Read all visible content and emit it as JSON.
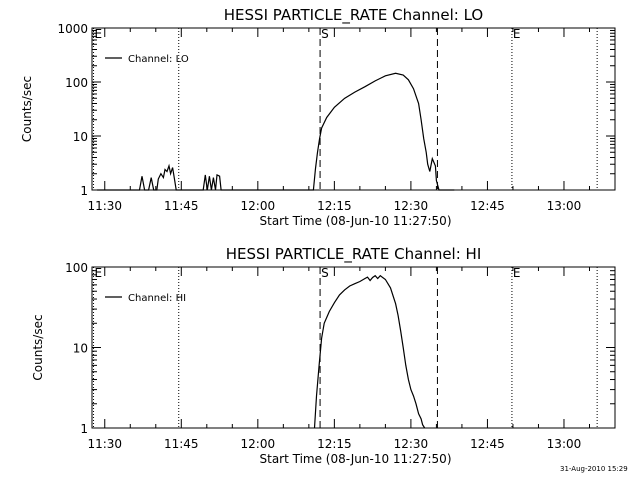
{
  "timestamp": "31-Aug-2010 15:29",
  "chart_data": [
    {
      "type": "line",
      "title": "HESSI PARTICLE_RATE Channel: LO",
      "xlabel": "Start Time (08-Jun-10 11:27:50)",
      "ylabel": "Counts/sec",
      "y_scale": "log",
      "ylim": [
        1,
        1000
      ],
      "y_ticks": [
        1,
        10,
        100,
        1000
      ],
      "y_tick_labels": [
        "1",
        "10",
        "100",
        "1000"
      ],
      "x_range_min": [
        -2.5,
        100
      ],
      "x_ticks_min": [
        0,
        15,
        30,
        45,
        60,
        75,
        90
      ],
      "x_tick_labels": [
        "11:30",
        "11:45",
        "12:00",
        "12:15",
        "12:30",
        "12:45",
        "13:00"
      ],
      "legend": "Channel: LO",
      "legend_position": "top-left",
      "markers": [
        {
          "label": "E",
          "x_min": -2.2,
          "style": "dotted"
        },
        {
          "label": "",
          "x_min": 14.5,
          "style": "dotted"
        },
        {
          "label": "S",
          "x_min": 42.2,
          "style": "dashed"
        },
        {
          "label": "",
          "x_min": 65.2,
          "style": "dashed"
        },
        {
          "label": "E",
          "x_min": 79.8,
          "style": "dotted"
        },
        {
          "label": "",
          "x_min": 96.5,
          "style": "dotted"
        }
      ],
      "series": [
        {
          "x_min": [
            -1.5,
            6.8,
            7.3,
            7.8,
            8.6,
            9.1,
            9.6,
            10.2,
            10.5,
            11.0,
            11.5,
            11.8,
            12.2,
            12.6,
            12.9,
            13.3,
            13.7,
            14.0,
            14.3,
            14.7,
            15.2,
            16.0,
            17.0,
            18.0,
            19.3,
            19.7,
            20.1,
            20.5,
            20.9,
            21.3,
            21.7,
            22.0,
            22.5,
            22.8,
            23.5,
            24.5,
            40.9,
            41.3,
            41.7,
            42.1,
            42.5,
            43.5,
            45.0,
            47.0,
            49.0,
            51.0,
            53.0,
            55.0,
            57.0,
            58.5,
            59.5,
            60.5,
            61.5,
            62.0,
            62.5,
            63.0,
            63.3,
            63.7,
            64.2,
            64.8,
            65.0,
            65.5,
            68.5
          ],
          "y": [
            1,
            1,
            1.8,
            1,
            1,
            1.7,
            1,
            1,
            1.6,
            2,
            1.7,
            2.4,
            2.2,
            2.8,
            2,
            2.6,
            1.5,
            1,
            1,
            1,
            1,
            1,
            1,
            1,
            1,
            1.9,
            1,
            1.8,
            1,
            1.7,
            1,
            1.9,
            1.8,
            1,
            1,
            1,
            1,
            2.5,
            5,
            9,
            14,
            22,
            34,
            50,
            65,
            82,
            105,
            130,
            145,
            135,
            110,
            75,
            40,
            20,
            9,
            5,
            3,
            2.2,
            3.8,
            2.8,
            1.5,
            1,
            1
          ]
        }
      ]
    },
    {
      "type": "line",
      "title": "HESSI PARTICLE_RATE Channel: HI",
      "xlabel": "Start Time (08-Jun-10 11:27:50)",
      "ylabel": "Counts/sec",
      "y_scale": "log",
      "ylim": [
        1,
        100
      ],
      "y_ticks": [
        1,
        10,
        100
      ],
      "y_tick_labels": [
        "1",
        "10",
        "100"
      ],
      "x_range_min": [
        -2.5,
        100
      ],
      "x_ticks_min": [
        0,
        15,
        30,
        45,
        60,
        75,
        90
      ],
      "x_tick_labels": [
        "11:30",
        "11:45",
        "12:00",
        "12:15",
        "12:30",
        "12:45",
        "13:00"
      ],
      "legend": "Channel: HI",
      "legend_position": "top-left",
      "markers": [
        {
          "label": "E",
          "x_min": -2.2,
          "style": "dotted"
        },
        {
          "label": "",
          "x_min": 14.5,
          "style": "dotted"
        },
        {
          "label": "S",
          "x_min": 42.2,
          "style": "dashed"
        },
        {
          "label": "",
          "x_min": 65.2,
          "style": "dashed"
        },
        {
          "label": "E",
          "x_min": 79.8,
          "style": "dotted"
        },
        {
          "label": "",
          "x_min": 96.5,
          "style": "dotted"
        }
      ],
      "series": [
        {
          "x_min": [
            41.1,
            41.5,
            42.0,
            42.5,
            43.0,
            44.0,
            45.0,
            46.0,
            47.0,
            48.0,
            49.0,
            50.0,
            51.0,
            51.5,
            52.0,
            52.5,
            53.0,
            53.5,
            54.0,
            55.0,
            56.0,
            57.0,
            57.5,
            58.0,
            58.5,
            59.0,
            59.5,
            60.0,
            60.5,
            61.0,
            61.5,
            62.0,
            62.3,
            62.7
          ],
          "y": [
            1,
            2.5,
            6,
            13,
            20,
            28,
            36,
            45,
            52,
            58,
            62,
            66,
            72,
            75,
            68,
            74,
            78,
            72,
            78,
            70,
            55,
            35,
            25,
            16,
            10,
            6,
            4,
            3,
            2.5,
            2,
            1.5,
            1.3,
            1.1,
            1
          ]
        }
      ]
    }
  ]
}
